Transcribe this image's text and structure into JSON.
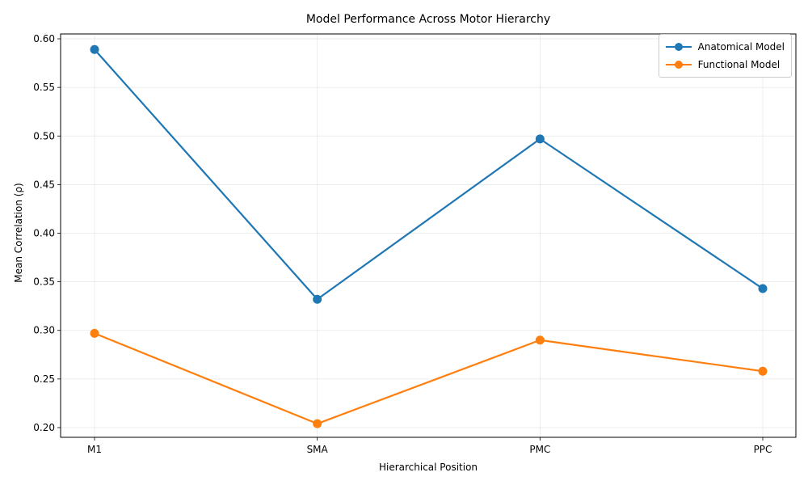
{
  "chart_data": {
    "type": "line",
    "title": "Model Performance Across Motor Hierarchy",
    "xlabel": "Hierarchical Position",
    "ylabel": "Mean Correlation (ρ)",
    "categories": [
      "M1",
      "SMA",
      "PMC",
      "PPC"
    ],
    "series": [
      {
        "name": "Anatomical Model",
        "values": [
          0.589,
          0.332,
          0.497,
          0.343
        ],
        "color": "#1f77b4"
      },
      {
        "name": "Functional Model",
        "values": [
          0.297,
          0.204,
          0.29,
          0.258
        ],
        "color": "#ff7f0e"
      }
    ],
    "ylim": [
      0.19,
      0.605
    ],
    "yticks": [
      0.2,
      0.25,
      0.3,
      0.35,
      0.4,
      0.45,
      0.5,
      0.55,
      0.6
    ],
    "ytick_labels": [
      "0.20",
      "0.25",
      "0.30",
      "0.35",
      "0.40",
      "0.45",
      "0.50",
      "0.55",
      "0.60"
    ],
    "grid": true,
    "legend_position": "top-right"
  }
}
